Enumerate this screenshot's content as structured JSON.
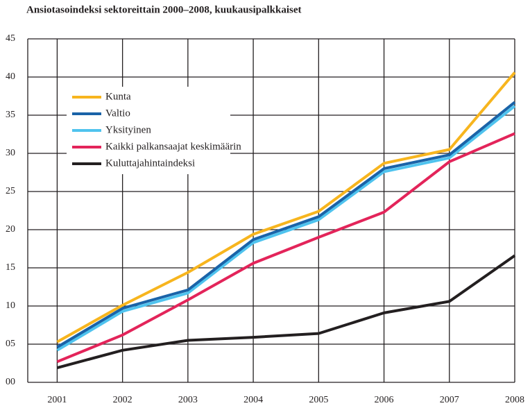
{
  "chart_data": {
    "type": "line",
    "title": "Ansiotasoindeksi sektoreittain 2000–2008, kuukausipalkkaiset",
    "x": [
      2001,
      2002,
      2003,
      2004,
      2005,
      2006,
      2007,
      2008
    ],
    "xlim": [
      2000.55,
      2008
    ],
    "xticks": [
      2001,
      2002,
      2003,
      2004,
      2005,
      2006,
      2007,
      2008
    ],
    "ylim": [
      0,
      45
    ],
    "yticks": [
      {
        "value": 0,
        "label": "00"
      },
      {
        "value": 5,
        "label": "05"
      },
      10,
      15,
      20,
      25,
      30,
      35,
      40,
      45
    ],
    "grid": true,
    "legend": "upper-left",
    "series": [
      {
        "name": "Kunta",
        "color": "#f7b51e",
        "values": [
          5.3,
          10.1,
          14.4,
          19.4,
          22.4,
          28.7,
          30.5,
          40.6
        ]
      },
      {
        "name": "Valtio",
        "color": "#1a63a8",
        "values": [
          4.6,
          9.7,
          12.1,
          18.7,
          21.7,
          28.0,
          29.8,
          36.7
        ]
      },
      {
        "name": "Yksityinen",
        "color": "#4fc3ee",
        "values": [
          4.2,
          9.3,
          11.7,
          18.3,
          21.3,
          27.6,
          29.4,
          36.2
        ]
      },
      {
        "name": "Kaikki palkansaajat keskimäärin",
        "color": "#e3245a",
        "values": [
          2.7,
          6.2,
          10.8,
          15.6,
          19.0,
          22.3,
          28.9,
          32.6
        ]
      },
      {
        "name": "Kuluttajahintaindeksi",
        "color": "#231f20",
        "values": [
          1.9,
          4.2,
          5.5,
          5.9,
          6.4,
          9.1,
          10.6,
          16.6
        ]
      }
    ]
  }
}
